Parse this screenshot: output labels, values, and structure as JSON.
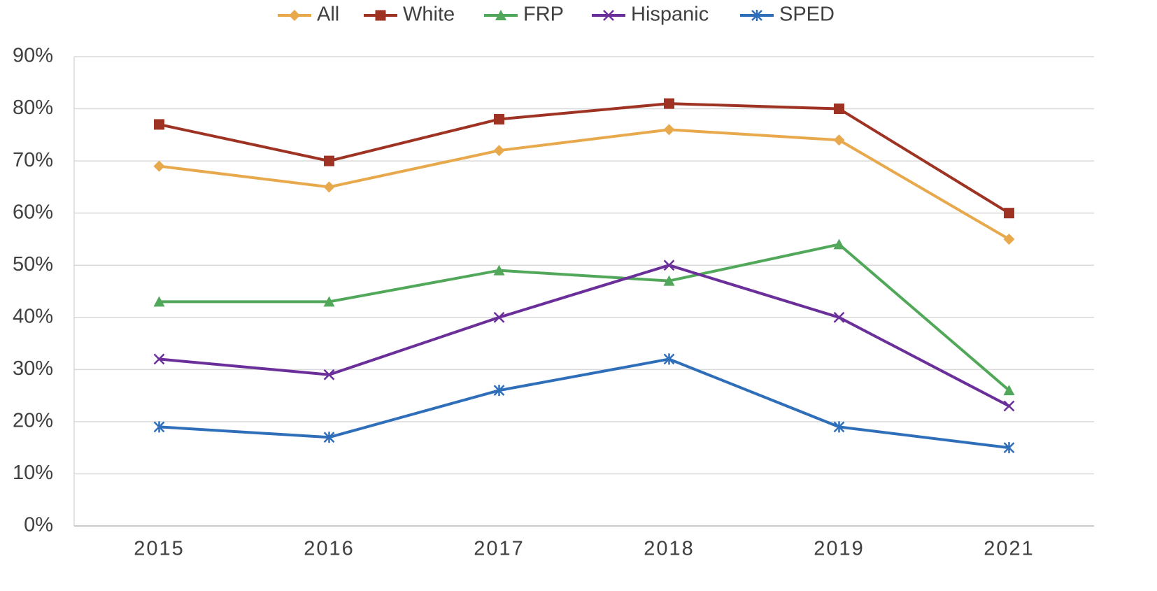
{
  "chart_data": {
    "type": "line",
    "categories": [
      "2015",
      "2016",
      "2017",
      "2018",
      "2019",
      "2021"
    ],
    "series": [
      {
        "name": "All",
        "color": "#e8a84c",
        "marker": "diamond",
        "values": [
          69,
          65,
          72,
          76,
          74,
          55
        ]
      },
      {
        "name": "White",
        "color": "#9e3223",
        "marker": "square",
        "values": [
          77,
          70,
          78,
          81,
          80,
          60
        ]
      },
      {
        "name": "FRP",
        "color": "#52a85a",
        "marker": "triangle",
        "values": [
          43,
          43,
          49,
          47,
          54,
          26
        ]
      },
      {
        "name": "Hispanic",
        "color": "#6b2f9a",
        "marker": "x",
        "values": [
          32,
          29,
          40,
          50,
          40,
          23
        ]
      },
      {
        "name": "SPED",
        "color": "#2f6fba",
        "marker": "asterisk",
        "values": [
          19,
          17,
          26,
          32,
          19,
          15
        ]
      }
    ],
    "ylim": [
      0,
      90
    ],
    "yticks": [
      {
        "value": 0,
        "label": "0%"
      },
      {
        "value": 10,
        "label": "10%"
      },
      {
        "value": 20,
        "label": "20%"
      },
      {
        "value": 30,
        "label": "30%"
      },
      {
        "value": 40,
        "label": "40%"
      },
      {
        "value": 50,
        "label": "50%"
      },
      {
        "value": 60,
        "label": "60%"
      },
      {
        "value": 70,
        "label": "70%"
      },
      {
        "value": 80,
        "label": "80%"
      },
      {
        "value": 90,
        "label": "90%"
      }
    ],
    "grid": true,
    "legend": "top"
  }
}
